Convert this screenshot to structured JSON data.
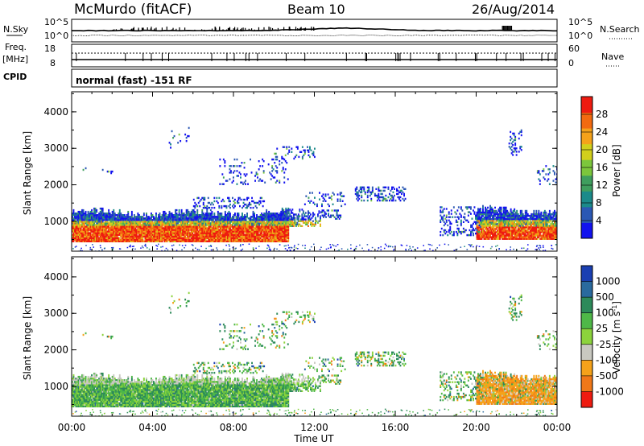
{
  "header": {
    "station": "McMurdo (fitACF)",
    "beam": "Beam 10",
    "date": "26/Aug/2014",
    "mode": "normal (fast) -151 RF"
  },
  "side_labels": {
    "nsky": "N.Sky",
    "freq_line1": "Freq.",
    "freq_line2": "[MHz]",
    "cpid": "CPID",
    "nsearch": "N.Search",
    "nave": "Nave"
  },
  "top_panels": {
    "noise_left_ticks": [
      "10^5",
      "10^0"
    ],
    "noise_right_ticks": [
      "10^5",
      "10^0"
    ],
    "freq_left_ticks": [
      "18",
      "8"
    ],
    "nave_right_ticks": [
      "60",
      "0"
    ]
  },
  "chart_data": [
    {
      "type": "heatmap",
      "name": "power",
      "ylabel": "Slant Range [km]",
      "ylim": [
        180,
        4550
      ],
      "yticks": [
        "1000",
        "2000",
        "3000",
        "4000"
      ],
      "ytick_values": [
        1000,
        2000,
        3000,
        4000
      ],
      "xlim_hours": [
        0,
        24
      ],
      "colorbar": {
        "label": "Power [dB]",
        "tick_labels": [
          "4",
          "8",
          "12",
          "16",
          "20",
          "24",
          "28"
        ],
        "tick_values": [
          4,
          8,
          12,
          16,
          20,
          24,
          28
        ],
        "range": [
          0,
          32
        ],
        "colors": [
          "#1212ee",
          "#2b58b4",
          "#1b8a8a",
          "#3f9e5e",
          "#7cc63c",
          "#d2cf1c",
          "#f5a21a",
          "#f26a10",
          "#ee1b10"
        ]
      }
    },
    {
      "type": "heatmap",
      "name": "velocity",
      "ylabel": "Slant Range [km]",
      "ylim": [
        180,
        4550
      ],
      "yticks": [
        "1000",
        "2000",
        "3000",
        "4000"
      ],
      "ytick_values": [
        1000,
        2000,
        3000,
        4000
      ],
      "xlim_hours": [
        0,
        24
      ],
      "xticks": [
        "00:00",
        "04:00",
        "08:00",
        "12:00",
        "16:00",
        "20:00",
        "00:00"
      ],
      "xlabel": "Time UT",
      "colorbar": {
        "label": "Velocity [m s",
        "label_sup": "-1",
        "label_end": "]",
        "tick_labels": [
          "1000",
          "500",
          "100",
          "25",
          "-25",
          "-100",
          "-500",
          "-1000"
        ],
        "colors": [
          "#1a3fb2",
          "#2a6a9e",
          "#2d8a5a",
          "#4fb848",
          "#8cd33c",
          "#c8c8c0",
          "#f5a21a",
          "#f07818",
          "#ee1b10"
        ]
      }
    }
  ]
}
